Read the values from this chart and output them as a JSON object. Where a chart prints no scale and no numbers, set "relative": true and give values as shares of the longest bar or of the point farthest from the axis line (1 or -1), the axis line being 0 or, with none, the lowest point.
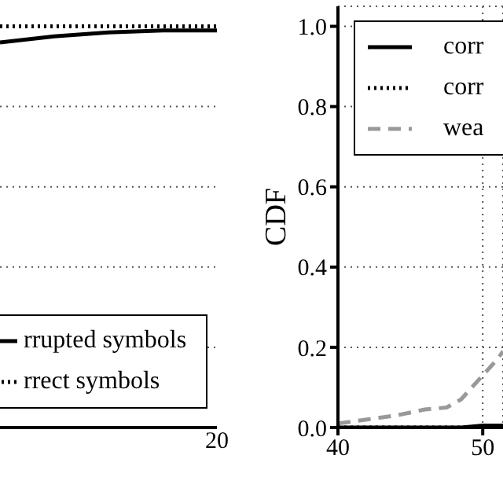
{
  "chart_data": [
    {
      "type": "line",
      "categories": [
        null,
        null,
        null,
        null,
        null
      ],
      "relative": true,
      "annotations": [
        "20"
      ],
      "grid": "y",
      "legend": "bottom left",
      "series": [
        {
          "name": "rrupted symbols",
          "color": "#000000",
          "line_style": "solid",
          "values": [
            0.96,
            0.975,
            0.985,
            0.99,
            0.99
          ]
        },
        {
          "name": "rrect symbols",
          "color": "#000000",
          "line_style": "dotted",
          "values": [
            1.0,
            1.0,
            1.0,
            1.0,
            1.0
          ]
        }
      ]
    },
    {
      "type": "line",
      "x": [
        40,
        42,
        44,
        46,
        47.5,
        48.5,
        50,
        51,
        51.4
      ],
      "xlim": [
        40,
        51.4
      ],
      "xticks": [
        40,
        50
      ],
      "ylim": [
        0,
        1.05
      ],
      "yticks": [
        {
          "value": 0,
          "label": "0.0"
        },
        0.2,
        0.4,
        0.6,
        0.8,
        {
          "value": 1,
          "label": "1.0"
        }
      ],
      "ylabel": "CDF",
      "grid": true,
      "legend": "top right",
      "series": [
        {
          "name": "corr",
          "color": "#000000",
          "line_style": "solid",
          "values": [
            0,
            0,
            0,
            0,
            0,
            0,
            0.005,
            0.005,
            0.005
          ]
        },
        {
          "name": "corr",
          "color": "#000000",
          "line_style": "dotted",
          "values": [
            0,
            0,
            0,
            0,
            0,
            0,
            0,
            0,
            0
          ]
        },
        {
          "name": "wea",
          "color": "#999999",
          "line_style": "dashed",
          "values": [
            0.01,
            0.02,
            0.03,
            0.045,
            0.05,
            0.07,
            0.13,
            0.17,
            0.19
          ]
        }
      ]
    }
  ]
}
